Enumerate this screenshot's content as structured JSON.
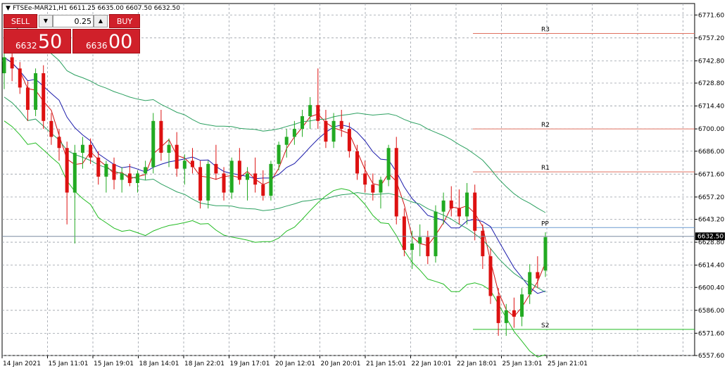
{
  "header": {
    "symbol_info": "FTSEe-MAR21,H1  6611.25 6635.00 6607.50 6632.50"
  },
  "trade_panel": {
    "sell_label": "SELL",
    "buy_label": "BUY",
    "lot_value": "0.25",
    "sell_price_prefix": "6632",
    "sell_price_big": "50",
    "buy_price_prefix": "6636",
    "buy_price_big": "00",
    "down_icon": "triangle-down-icon",
    "up_icon": "triangle-up-icon"
  },
  "colors": {
    "bull": "#22aa22",
    "bear": "#dd1111",
    "grid": "#9aa0a8",
    "ma_fast": "#d01010",
    "ma_slow": "#1a1aaa",
    "bands": "#22bb22",
    "bb": "#2ca060",
    "cloud": "#e8a080",
    "pivot": "#e07060"
  },
  "chart_data": {
    "type": "candlestick",
    "symbol": "FTSEe-MAR21",
    "timeframe": "H1",
    "last_price": "6632.50",
    "ylim": [
      6557.6,
      6778.8
    ],
    "y_ticks": [
      "6771.60",
      "6757.20",
      "6742.80",
      "6728.80",
      "6714.40",
      "6700.00",
      "6686.00",
      "6671.60",
      "6657.20",
      "6643.20",
      "6628.80",
      "6614.40",
      "6600.40",
      "6586.00",
      "6571.60",
      "6557.60"
    ],
    "x_ticks": [
      "14 Jan 2021",
      "15 Jan 11:01",
      "15 Jan 19:01",
      "18 Jan 14:01",
      "18 Jan 22:01",
      "19 Jan 17:01",
      "20 Jan 12:01",
      "20 Jan 20:01",
      "21 Jan 15:01",
      "22 Jan 10:01",
      "22 Jan 18:01",
      "25 Jan 13:01",
      "25 Jan 21:01"
    ],
    "pivot_levels": [
      {
        "name": "R3",
        "value": 6760
      },
      {
        "name": "R2",
        "value": 6700
      },
      {
        "name": "R1",
        "value": 6673
      },
      {
        "name": "PP",
        "value": 6638
      },
      {
        "name": "S2",
        "value": 6574
      }
    ],
    "candles": [
      [
        6735,
        6748,
        6725,
        6745
      ],
      [
        6745,
        6752,
        6730,
        6738
      ],
      [
        6738,
        6742,
        6722,
        6726
      ],
      [
        6726,
        6730,
        6705,
        6712
      ],
      [
        6712,
        6738,
        6708,
        6735
      ],
      [
        6735,
        6740,
        6700,
        6705
      ],
      [
        6705,
        6710,
        6690,
        6695
      ],
      [
        6695,
        6700,
        6680,
        6688
      ],
      [
        6688,
        6692,
        6640,
        6660
      ],
      [
        6660,
        6690,
        6628,
        6685
      ],
      [
        6685,
        6695,
        6675,
        6690
      ],
      [
        6690,
        6694,
        6678,
        6682
      ],
      [
        6682,
        6686,
        6665,
        6670
      ],
      [
        6670,
        6680,
        6660,
        6678
      ],
      [
        6678,
        6682,
        6662,
        6668
      ],
      [
        6668,
        6676,
        6660,
        6672
      ],
      [
        6672,
        6678,
        6664,
        6666
      ],
      [
        6666,
        6674,
        6660,
        6672
      ],
      [
        6672,
        6680,
        6668,
        6676
      ],
      [
        6676,
        6710,
        6672,
        6705
      ],
      [
        6705,
        6712,
        6680,
        6685
      ],
      [
        6685,
        6694,
        6676,
        6690
      ],
      [
        6690,
        6698,
        6670,
        6675
      ],
      [
        6675,
        6684,
        6665,
        6680
      ],
      [
        6680,
        6688,
        6672,
        6676
      ],
      [
        6676,
        6680,
        6650,
        6655
      ],
      [
        6655,
        6680,
        6650,
        6678
      ],
      [
        6678,
        6690,
        6668,
        6672
      ],
      [
        6672,
        6676,
        6655,
        6660
      ],
      [
        6660,
        6682,
        6656,
        6680
      ],
      [
        6680,
        6688,
        6665,
        6668
      ],
      [
        6668,
        6676,
        6655,
        6672
      ],
      [
        6672,
        6682,
        6660,
        6665
      ],
      [
        6665,
        6674,
        6655,
        6658
      ],
      [
        6658,
        6680,
        6655,
        6678
      ],
      [
        6678,
        6692,
        6674,
        6690
      ],
      [
        6690,
        6700,
        6682,
        6695
      ],
      [
        6695,
        6705,
        6690,
        6700
      ],
      [
        6700,
        6712,
        6695,
        6708
      ],
      [
        6708,
        6720,
        6700,
        6715
      ],
      [
        6715,
        6738,
        6700,
        6705
      ],
      [
        6705,
        6712,
        6688,
        6692
      ],
      [
        6692,
        6710,
        6688,
        6705
      ],
      [
        6705,
        6712,
        6695,
        6700
      ],
      [
        6700,
        6704,
        6682,
        6686
      ],
      [
        6686,
        6690,
        6668,
        6672
      ],
      [
        6672,
        6680,
        6660,
        6665
      ],
      [
        6665,
        6672,
        6655,
        6660
      ],
      [
        6660,
        6670,
        6650,
        6668
      ],
      [
        6668,
        6690,
        6664,
        6688
      ],
      [
        6688,
        6695,
        6640,
        6645
      ],
      [
        6645,
        6650,
        6620,
        6624
      ],
      [
        6624,
        6636,
        6612,
        6628
      ],
      [
        6628,
        6640,
        6620,
        6632
      ],
      [
        6632,
        6636,
        6615,
        6620
      ],
      [
        6620,
        6652,
        6616,
        6648
      ],
      [
        6648,
        6660,
        6640,
        6655
      ],
      [
        6655,
        6664,
        6645,
        6650
      ],
      [
        6650,
        6662,
        6640,
        6645
      ],
      [
        6645,
        6666,
        6640,
        6660
      ],
      [
        6660,
        6665,
        6630,
        6636
      ],
      [
        6636,
        6640,
        6612,
        6620
      ],
      [
        6620,
        6625,
        6590,
        6595
      ],
      [
        6595,
        6600,
        6570,
        6578
      ],
      [
        6578,
        6590,
        6570,
        6586
      ],
      [
        6586,
        6594,
        6575,
        6582
      ],
      [
        6582,
        6600,
        6576,
        6596
      ],
      [
        6596,
        6615,
        6590,
        6610
      ],
      [
        6610,
        6620,
        6600,
        6606
      ],
      [
        6611,
        6635,
        6607,
        6632
      ]
    ]
  }
}
